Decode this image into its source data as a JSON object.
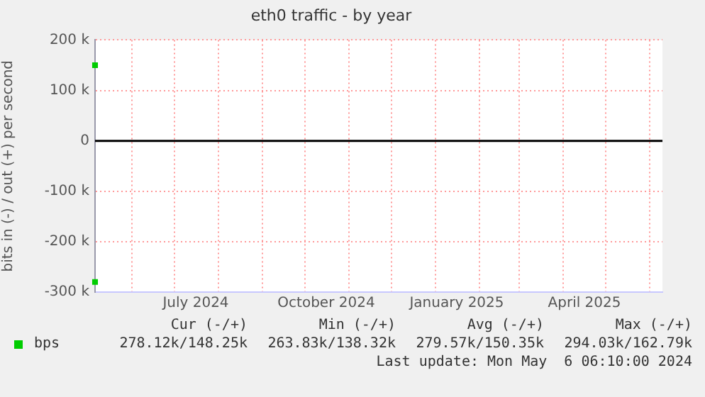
{
  "chart_data": {
    "type": "scatter",
    "title": "eth0 traffic - by year",
    "ylabel": "bits in (-) / out (+) per second",
    "xlim": [
      "2024-05-06",
      "2025-06-10"
    ],
    "xticks": [
      {
        "value": "2024-06-01",
        "label": null
      },
      {
        "value": "2024-07-01",
        "label": null
      },
      {
        "value": "2024-07-16",
        "label": "July 2024"
      },
      {
        "value": "2024-08-01",
        "label": null
      },
      {
        "value": "2024-09-01",
        "label": null
      },
      {
        "value": "2024-10-01",
        "label": null
      },
      {
        "value": "2024-10-16",
        "label": "October 2024"
      },
      {
        "value": "2024-11-01",
        "label": null
      },
      {
        "value": "2024-12-01",
        "label": null
      },
      {
        "value": "2025-01-01",
        "label": null
      },
      {
        "value": "2025-01-16",
        "label": "January 2025"
      },
      {
        "value": "2025-02-01",
        "label": null
      },
      {
        "value": "2025-03-01",
        "label": null
      },
      {
        "value": "2025-04-01",
        "label": null
      },
      {
        "value": "2025-04-16",
        "label": "April 2025"
      },
      {
        "value": "2025-05-01",
        "label": null
      },
      {
        "value": "2025-06-01",
        "label": null
      }
    ],
    "ylim": [
      -300000,
      200000
    ],
    "yticks": [
      {
        "value": -300000,
        "label": "-300 k"
      },
      {
        "value": -200000,
        "label": "-200 k"
      },
      {
        "value": -100000,
        "label": "-100 k"
      },
      0,
      {
        "value": 100000,
        "label": "100 k"
      },
      {
        "value": 200000,
        "label": "200 k"
      }
    ],
    "series": [
      {
        "name": "bps",
        "color": "#00cc00",
        "x": [
          "2024-05-06"
        ],
        "values": [
          150000
        ]
      },
      {
        "color": "#00cc00",
        "x": [
          "2024-05-06"
        ],
        "values": [
          -280000
        ]
      }
    ],
    "ref_lines": [
      {
        "axis": "y",
        "value": 0,
        "color": "#000000"
      }
    ],
    "grid": true,
    "legend": "bottom left",
    "marker": "square",
    "annotations": [
      "Cur (-/+)",
      "Min (-/+)",
      "Avg (-/+)",
      "Max (-/+)",
      "278.12k/148.25k",
      "263.83k/138.32k",
      "279.57k/150.35k",
      "294.03k/162.79k",
      "Last update: Mon May  6 06:10:00 2024"
    ]
  }
}
